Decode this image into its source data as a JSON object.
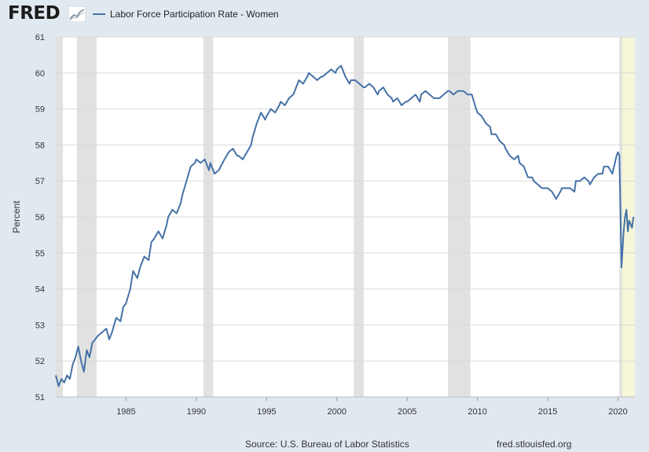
{
  "header": {
    "logo_text": "FRED",
    "logo_icon": "line-chart-icon",
    "series_label": "Labor Force Participation Rate - Women"
  },
  "footer": {
    "source": "Source: U.S. Bureau of Labor Statistics",
    "url": "fred.stlouisfed.org"
  },
  "colors": {
    "line": "#4572a7",
    "recession": "#e1e1e1",
    "forecast_band": "#f6f6d8",
    "grid": "#dadada",
    "plot_bg": "#ffffff",
    "page_bg": "#e1e9f0"
  },
  "chart_data": {
    "type": "line",
    "title": "",
    "xlabel": "",
    "ylabel": "Percent",
    "xlim": [
      1980,
      2021.2
    ],
    "ylim": [
      51,
      61
    ],
    "x_ticks": [
      1985,
      1990,
      1995,
      2000,
      2005,
      2010,
      2015,
      2020
    ],
    "y_ticks": [
      51,
      52,
      53,
      54,
      55,
      56,
      57,
      58,
      59,
      60,
      61
    ],
    "grid": true,
    "legend": "top-left",
    "recessions": [
      [
        1980.0,
        1980.5
      ],
      [
        1981.5,
        1982.9
      ],
      [
        1990.5,
        1991.2
      ],
      [
        2001.2,
        2001.9
      ],
      [
        2007.9,
        2009.5
      ],
      [
        2020.1,
        2020.3
      ]
    ],
    "highlight_band": [
      2020.1,
      2021.2
    ],
    "series": [
      {
        "name": "Labor Force Participation Rate - Women",
        "points": [
          [
            1980.0,
            51.6
          ],
          [
            1980.2,
            51.3
          ],
          [
            1980.4,
            51.5
          ],
          [
            1980.6,
            51.4
          ],
          [
            1980.8,
            51.6
          ],
          [
            1981.0,
            51.5
          ],
          [
            1981.2,
            51.9
          ],
          [
            1981.4,
            52.1
          ],
          [
            1981.6,
            52.4
          ],
          [
            1981.8,
            52.0
          ],
          [
            1982.0,
            51.7
          ],
          [
            1982.2,
            52.3
          ],
          [
            1982.4,
            52.1
          ],
          [
            1982.6,
            52.5
          ],
          [
            1982.8,
            52.6
          ],
          [
            1983.0,
            52.7
          ],
          [
            1983.3,
            52.8
          ],
          [
            1983.6,
            52.9
          ],
          [
            1983.8,
            52.6
          ],
          [
            1984.0,
            52.8
          ],
          [
            1984.3,
            53.2
          ],
          [
            1984.6,
            53.1
          ],
          [
            1984.8,
            53.5
          ],
          [
            1985.0,
            53.6
          ],
          [
            1985.3,
            54.0
          ],
          [
            1985.5,
            54.5
          ],
          [
            1985.8,
            54.3
          ],
          [
            1986.0,
            54.6
          ],
          [
            1986.3,
            54.9
          ],
          [
            1986.6,
            54.8
          ],
          [
            1986.8,
            55.3
          ],
          [
            1987.0,
            55.4
          ],
          [
            1987.3,
            55.6
          ],
          [
            1987.6,
            55.4
          ],
          [
            1987.9,
            55.8
          ],
          [
            1988.0,
            56.0
          ],
          [
            1988.3,
            56.2
          ],
          [
            1988.6,
            56.1
          ],
          [
            1988.9,
            56.4
          ],
          [
            1989.0,
            56.6
          ],
          [
            1989.3,
            57.0
          ],
          [
            1989.6,
            57.4
          ],
          [
            1989.9,
            57.5
          ],
          [
            1990.0,
            57.6
          ],
          [
            1990.3,
            57.5
          ],
          [
            1990.6,
            57.6
          ],
          [
            1990.9,
            57.3
          ],
          [
            1991.0,
            57.5
          ],
          [
            1991.3,
            57.2
          ],
          [
            1991.6,
            57.3
          ],
          [
            1992.0,
            57.6
          ],
          [
            1992.3,
            57.8
          ],
          [
            1992.6,
            57.9
          ],
          [
            1992.9,
            57.7
          ],
          [
            1993.0,
            57.7
          ],
          [
            1993.3,
            57.6
          ],
          [
            1993.6,
            57.8
          ],
          [
            1993.9,
            58.0
          ],
          [
            1994.0,
            58.2
          ],
          [
            1994.3,
            58.6
          ],
          [
            1994.6,
            58.9
          ],
          [
            1994.9,
            58.7
          ],
          [
            1995.0,
            58.8
          ],
          [
            1995.3,
            59.0
          ],
          [
            1995.6,
            58.9
          ],
          [
            1995.9,
            59.1
          ],
          [
            1996.0,
            59.2
          ],
          [
            1996.3,
            59.1
          ],
          [
            1996.6,
            59.3
          ],
          [
            1996.9,
            59.4
          ],
          [
            1997.0,
            59.5
          ],
          [
            1997.3,
            59.8
          ],
          [
            1997.6,
            59.7
          ],
          [
            1997.9,
            59.9
          ],
          [
            1998.0,
            60.0
          ],
          [
            1998.3,
            59.9
          ],
          [
            1998.6,
            59.8
          ],
          [
            1998.9,
            59.9
          ],
          [
            1999.0,
            59.9
          ],
          [
            1999.3,
            60.0
          ],
          [
            1999.6,
            60.1
          ],
          [
            1999.9,
            60.0
          ],
          [
            2000.0,
            60.1
          ],
          [
            2000.3,
            60.2
          ],
          [
            2000.6,
            59.9
          ],
          [
            2000.9,
            59.7
          ],
          [
            2001.0,
            59.8
          ],
          [
            2001.3,
            59.8
          ],
          [
            2001.6,
            59.7
          ],
          [
            2001.9,
            59.6
          ],
          [
            2002.0,
            59.6
          ],
          [
            2002.3,
            59.7
          ],
          [
            2002.6,
            59.6
          ],
          [
            2002.9,
            59.4
          ],
          [
            2003.0,
            59.5
          ],
          [
            2003.3,
            59.6
          ],
          [
            2003.6,
            59.4
          ],
          [
            2003.9,
            59.3
          ],
          [
            2004.0,
            59.2
          ],
          [
            2004.3,
            59.3
          ],
          [
            2004.6,
            59.1
          ],
          [
            2004.9,
            59.2
          ],
          [
            2005.0,
            59.2
          ],
          [
            2005.3,
            59.3
          ],
          [
            2005.6,
            59.4
          ],
          [
            2005.9,
            59.2
          ],
          [
            2006.0,
            59.4
          ],
          [
            2006.3,
            59.5
          ],
          [
            2006.6,
            59.4
          ],
          [
            2006.9,
            59.3
          ],
          [
            2007.0,
            59.3
          ],
          [
            2007.3,
            59.3
          ],
          [
            2007.6,
            59.4
          ],
          [
            2007.9,
            59.5
          ],
          [
            2008.0,
            59.5
          ],
          [
            2008.3,
            59.4
          ],
          [
            2008.6,
            59.5
          ],
          [
            2008.9,
            59.5
          ],
          [
            2009.0,
            59.5
          ],
          [
            2009.3,
            59.4
          ],
          [
            2009.6,
            59.4
          ],
          [
            2009.9,
            59.0
          ],
          [
            2010.0,
            58.9
          ],
          [
            2010.3,
            58.8
          ],
          [
            2010.6,
            58.6
          ],
          [
            2010.9,
            58.5
          ],
          [
            2011.0,
            58.3
          ],
          [
            2011.3,
            58.3
          ],
          [
            2011.6,
            58.1
          ],
          [
            2011.9,
            58.0
          ],
          [
            2012.0,
            57.9
          ],
          [
            2012.3,
            57.7
          ],
          [
            2012.6,
            57.6
          ],
          [
            2012.9,
            57.7
          ],
          [
            2013.0,
            57.5
          ],
          [
            2013.3,
            57.4
          ],
          [
            2013.6,
            57.1
          ],
          [
            2013.9,
            57.1
          ],
          [
            2014.0,
            57.0
          ],
          [
            2014.3,
            56.9
          ],
          [
            2014.6,
            56.8
          ],
          [
            2014.9,
            56.8
          ],
          [
            2015.0,
            56.8
          ],
          [
            2015.3,
            56.7
          ],
          [
            2015.6,
            56.5
          ],
          [
            2015.9,
            56.7
          ],
          [
            2016.0,
            56.8
          ],
          [
            2016.3,
            56.8
          ],
          [
            2016.6,
            56.8
          ],
          [
            2016.9,
            56.7
          ],
          [
            2017.0,
            57.0
          ],
          [
            2017.3,
            57.0
          ],
          [
            2017.6,
            57.1
          ],
          [
            2017.9,
            57.0
          ],
          [
            2018.0,
            56.9
          ],
          [
            2018.3,
            57.1
          ],
          [
            2018.6,
            57.2
          ],
          [
            2018.9,
            57.2
          ],
          [
            2019.0,
            57.4
          ],
          [
            2019.3,
            57.4
          ],
          [
            2019.6,
            57.2
          ],
          [
            2019.9,
            57.7
          ],
          [
            2020.0,
            57.8
          ],
          [
            2020.1,
            57.7
          ],
          [
            2020.25,
            54.6
          ],
          [
            2020.4,
            55.6
          ],
          [
            2020.5,
            56.0
          ],
          [
            2020.6,
            56.2
          ],
          [
            2020.7,
            55.6
          ],
          [
            2020.8,
            55.9
          ],
          [
            2020.9,
            55.8
          ],
          [
            2021.0,
            55.7
          ],
          [
            2021.1,
            56.0
          ]
        ]
      }
    ]
  }
}
